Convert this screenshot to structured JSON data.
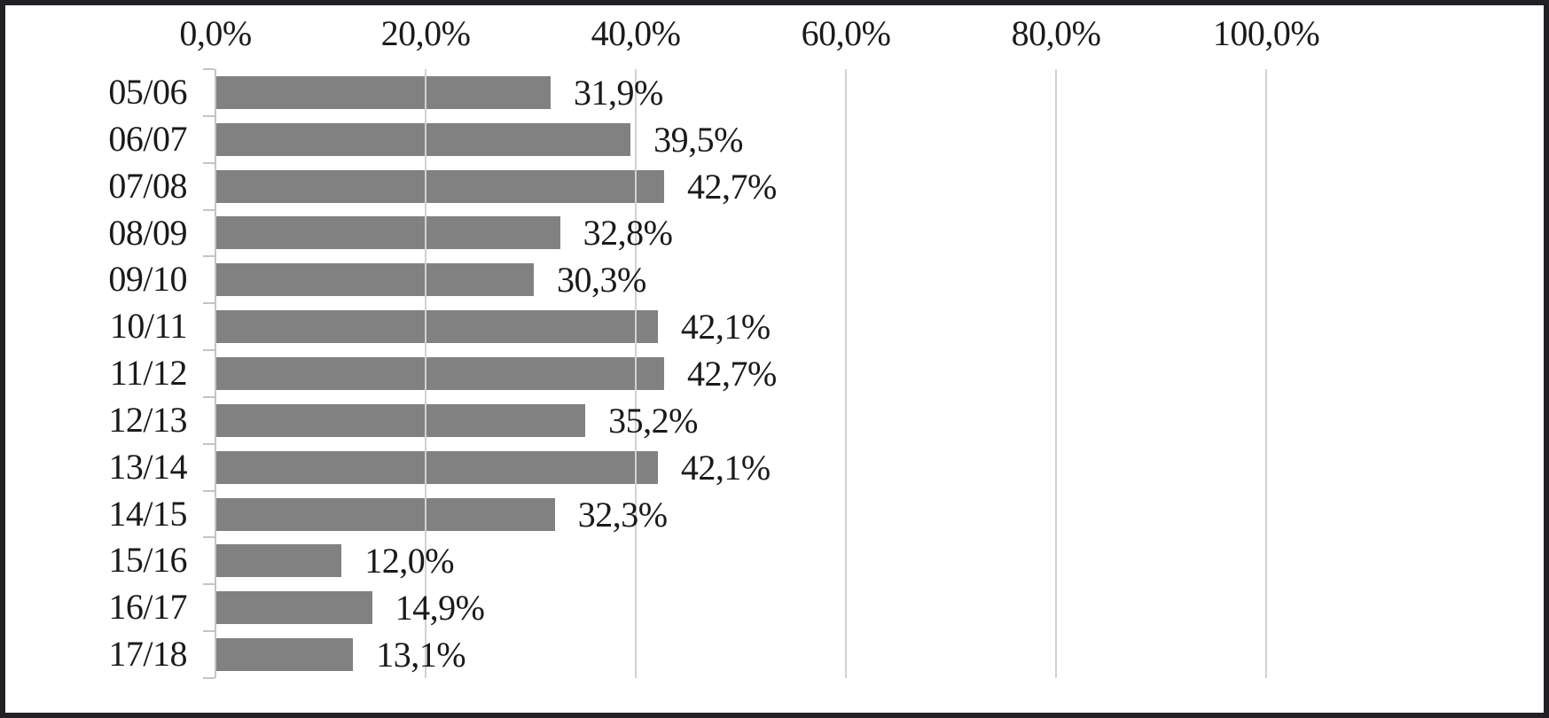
{
  "chart_data": {
    "type": "bar",
    "orientation": "horizontal",
    "title": "",
    "categories": [
      "05/06",
      "06/07",
      "07/08",
      "08/09",
      "09/10",
      "10/11",
      "11/12",
      "12/13",
      "13/14",
      "14/15",
      "15/16",
      "16/17",
      "17/18"
    ],
    "values": [
      31.9,
      39.5,
      42.7,
      32.8,
      30.3,
      42.1,
      42.7,
      35.2,
      42.1,
      32.3,
      12.0,
      14.9,
      13.1
    ],
    "value_labels": [
      "31,9%",
      "39,5%",
      "42,7%",
      "32,8%",
      "30,3%",
      "42,1%",
      "42,7%",
      "35,2%",
      "42,1%",
      "32,3%",
      "12,0%",
      "14,9%",
      "13,1%"
    ],
    "x_axis": {
      "position": "top",
      "min": 0,
      "max": 100,
      "tick_values": [
        0,
        20,
        40,
        60,
        80,
        100
      ],
      "tick_labels": [
        "0,0%",
        "20,0%",
        "40,0%",
        "60,0%",
        "80,0%",
        "100,0%"
      ]
    },
    "grid": true,
    "legend": false,
    "colors": {
      "bar": "#818181",
      "gridline": "#d2d2d2",
      "axis_line": "#c4c4c4",
      "text": "#1a1a1a",
      "frame": "#221f25",
      "background": "#ffffff"
    }
  }
}
